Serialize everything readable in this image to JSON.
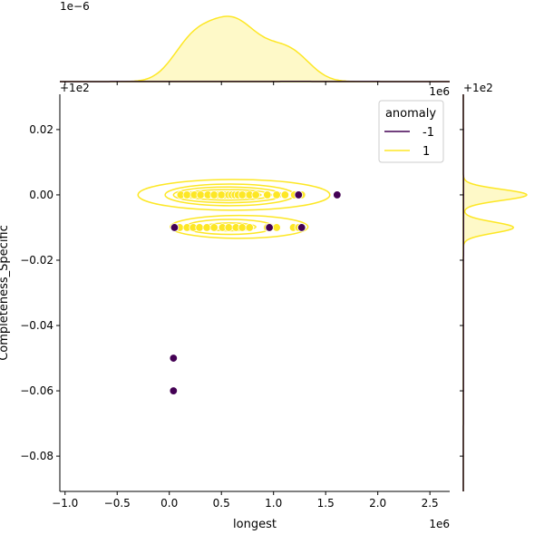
{
  "chart_data": {
    "type": "scatter",
    "subtype": "jointplot",
    "xlabel": "longest",
    "ylabel": "Completeness_Specific",
    "x_offset_label": "1e6",
    "y_offset_label": "+1e2",
    "top_marginal_offset_label": "1e−6",
    "top_marginal_x_offset": "+1e2",
    "top_marginal_x_scale": "1e6",
    "right_marginal_offset_label": "+1e2",
    "xlim": [
      -1.05,
      2.69
    ],
    "ylim": [
      -0.0908,
      0.0308
    ],
    "xticks": [
      -1.0,
      -0.5,
      0.0,
      0.5,
      1.0,
      1.5,
      2.0,
      2.5
    ],
    "xtick_labels": [
      "−1.0",
      "−0.5",
      "0.0",
      "0.5",
      "1.0",
      "1.5",
      "2.0",
      "2.5"
    ],
    "yticks": [
      0.02,
      0.0,
      -0.02,
      -0.04,
      -0.06,
      -0.08
    ],
    "ytick_labels": [
      "0.02",
      "0.00",
      "−0.02",
      "−0.04",
      "−0.06",
      "−0.08"
    ],
    "legend": {
      "title": "anomaly",
      "placement": "upper-right",
      "entries": [
        {
          "label": "-1",
          "color": "#440154"
        },
        {
          "label": "1",
          "color": "#fde725"
        }
      ]
    },
    "series": [
      {
        "name": "1",
        "color": "#fde725",
        "points": [
          [
            0.11,
            0
          ],
          [
            0.17,
            0
          ],
          [
            0.24,
            0
          ],
          [
            0.3,
            0
          ],
          [
            0.37,
            0
          ],
          [
            0.43,
            0
          ],
          [
            0.5,
            0
          ],
          [
            0.57,
            0
          ],
          [
            0.6,
            0
          ],
          [
            0.63,
            0
          ],
          [
            0.66,
            0
          ],
          [
            0.7,
            0
          ],
          [
            0.77,
            0
          ],
          [
            0.83,
            0
          ],
          [
            0.94,
            0
          ],
          [
            1.03,
            0
          ],
          [
            1.11,
            0
          ],
          [
            1.2,
            0
          ],
          [
            1.27,
            0
          ],
          [
            0.1,
            -0.01
          ],
          [
            0.17,
            -0.01
          ],
          [
            0.23,
            -0.01
          ],
          [
            0.29,
            -0.01
          ],
          [
            0.36,
            -0.01
          ],
          [
            0.43,
            -0.01
          ],
          [
            0.51,
            -0.01
          ],
          [
            0.57,
            -0.01
          ],
          [
            0.64,
            -0.01
          ],
          [
            0.7,
            -0.01
          ],
          [
            0.77,
            -0.01
          ],
          [
            0.94,
            -0.01
          ],
          [
            1.03,
            -0.01
          ],
          [
            1.19,
            -0.01
          ],
          [
            1.24,
            -0.01
          ]
        ]
      },
      {
        "name": "-1",
        "color": "#440154",
        "points": [
          [
            1.24,
            0
          ],
          [
            1.61,
            0
          ],
          [
            0.05,
            -0.01
          ],
          [
            0.96,
            -0.01
          ],
          [
            1.27,
            -0.01
          ],
          [
            0.04,
            -0.05
          ],
          [
            0.04,
            -0.06
          ]
        ]
      }
    ],
    "contours": [
      {
        "cx": 0.62,
        "cy": 0.0,
        "rx": 0.92,
        "ry": 0.0047
      },
      {
        "cx": 0.58,
        "cy": 0.0,
        "rx": 0.62,
        "ry": 0.0033
      },
      {
        "cx": 0.56,
        "cy": 0.0,
        "rx": 0.52,
        "ry": 0.0024
      },
      {
        "cx": 0.56,
        "cy": 0.0,
        "rx": 0.42,
        "ry": 0.0016
      },
      {
        "cx": 0.58,
        "cy": 0.0,
        "rx": 0.3,
        "ry": 0.0009
      },
      {
        "cx": 0.67,
        "cy": -0.0098,
        "rx": 0.66,
        "ry": 0.0035
      },
      {
        "cx": 0.58,
        "cy": -0.0098,
        "rx": 0.42,
        "ry": 0.0023
      },
      {
        "cx": 0.58,
        "cy": -0.0098,
        "rx": 0.25,
        "ry": 0.0012
      }
    ]
  }
}
